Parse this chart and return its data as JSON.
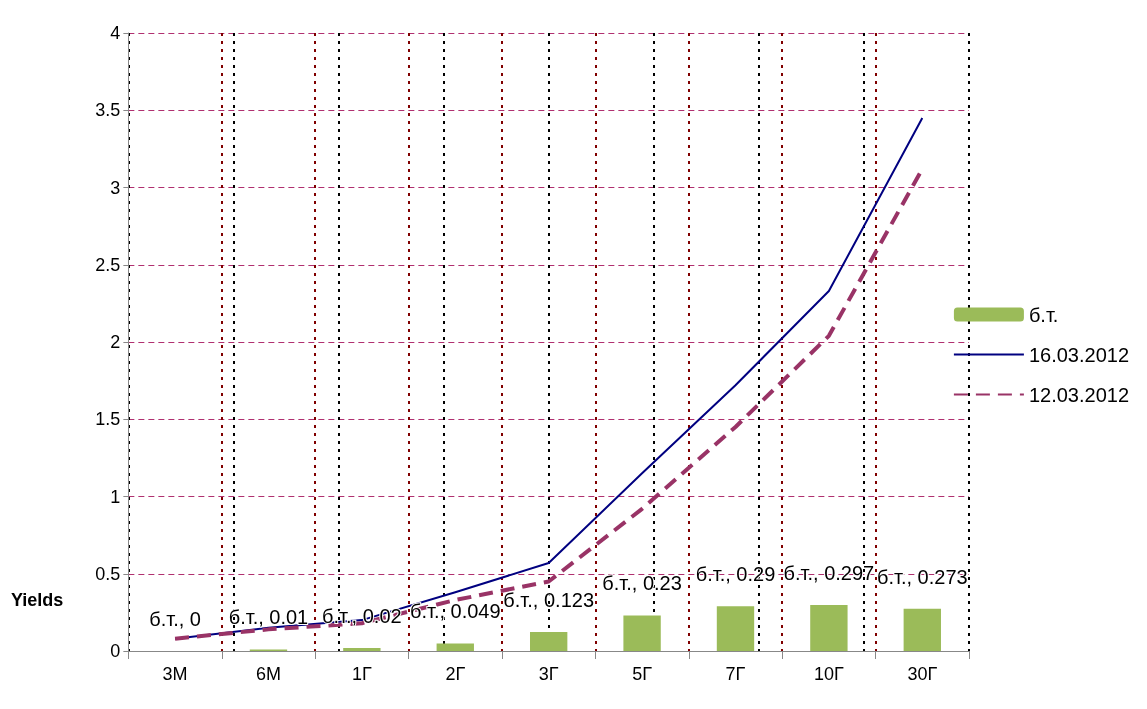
{
  "chart_data": {
    "type": "bar",
    "ylabel": "Yields",
    "categories": [
      "3M",
      "6M",
      "1Г",
      "2Г",
      "3Г",
      "5Г",
      "7Г",
      "10Г",
      "30Г"
    ],
    "series": [
      {
        "name": "б.т.",
        "color": "#9bbb59",
        "values": [
          0,
          0.01,
          0.02,
          0.049,
          0.123,
          0.23,
          0.29,
          0.297,
          0.273
        ],
        "value_labels": [
          "б.т., 0",
          "б.т., 0.01",
          "б.т., 0.02",
          "б.т., 0.049",
          "б.т., 0.123",
          "б.т., 0.23",
          "б.т., 0.29",
          "б.т., 0.297",
          "б.т., 0.273"
        ]
      },
      {
        "name": "16.03.2012",
        "type": "line",
        "color": "#000080",
        "line_style": "solid",
        "values": [
          0.08,
          0.15,
          0.2,
          0.38,
          0.57,
          1.15,
          1.72,
          2.33,
          3.45
        ]
      },
      {
        "name": "12.03.2012",
        "type": "line",
        "color": "#993366",
        "line_style": "dashed",
        "values": [
          0.08,
          0.14,
          0.18,
          0.33,
          0.45,
          0.92,
          1.45,
          2.04,
          3.12
        ]
      }
    ],
    "ylim": [
      0,
      4
    ],
    "yticks": [
      0,
      0.5,
      1,
      1.5,
      2,
      2.5,
      3,
      3.5,
      4
    ],
    "grid": true,
    "legend": "right",
    "marker": "none"
  }
}
